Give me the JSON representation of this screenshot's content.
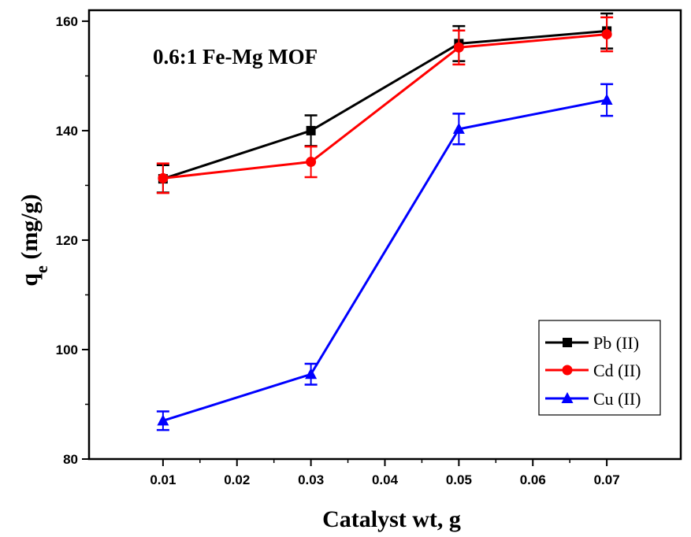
{
  "chart_data": {
    "type": "line",
    "title": "",
    "annotation": "0.6:1 Fe-Mg MOF",
    "xlabel": "Catalyst wt, g",
    "ylabel_main": "q",
    "ylabel_sub": "e",
    "ylabel_unit": " (mg/g)",
    "xlim": [
      0.0,
      0.08
    ],
    "ylim": [
      80,
      162
    ],
    "x_ticks": [
      0.01,
      0.02,
      0.03,
      0.04,
      0.05,
      0.06,
      0.07
    ],
    "x_tick_labels": [
      "0.01",
      "0.02",
      "0.03",
      "0.04",
      "0.05",
      "0.06",
      "0.07"
    ],
    "y_ticks": [
      80,
      100,
      120,
      140,
      160
    ],
    "y_tick_labels": [
      "80",
      "100",
      "120",
      "140",
      "160"
    ],
    "y_minor_ticks": [
      90,
      110,
      130,
      150
    ],
    "legend_position": "bottom-right",
    "series": [
      {
        "name": "Pb (II)",
        "color": "#000000",
        "marker": "square",
        "points": [
          {
            "x": 0.01,
            "y": 131.2,
            "err": 2.5
          },
          {
            "x": 0.03,
            "y": 140.0,
            "err": 2.8
          },
          {
            "x": 0.05,
            "y": 155.9,
            "err": 3.2
          },
          {
            "x": 0.07,
            "y": 158.2,
            "err": 3.2
          }
        ]
      },
      {
        "name": "Cd (II)",
        "color": "#ff0000",
        "marker": "circle",
        "points": [
          {
            "x": 0.01,
            "y": 131.3,
            "err": 2.7
          },
          {
            "x": 0.03,
            "y": 134.3,
            "err": 2.8
          },
          {
            "x": 0.05,
            "y": 155.2,
            "err": 3.1
          },
          {
            "x": 0.07,
            "y": 157.6,
            "err": 3.1
          }
        ]
      },
      {
        "name": "Cu (II)",
        "color": "#0000ff",
        "marker": "triangle",
        "points": [
          {
            "x": 0.01,
            "y": 87.0,
            "err": 1.7
          },
          {
            "x": 0.03,
            "y": 95.5,
            "err": 1.9
          },
          {
            "x": 0.05,
            "y": 140.3,
            "err": 2.8
          },
          {
            "x": 0.07,
            "y": 145.6,
            "err": 2.9
          }
        ]
      }
    ]
  }
}
